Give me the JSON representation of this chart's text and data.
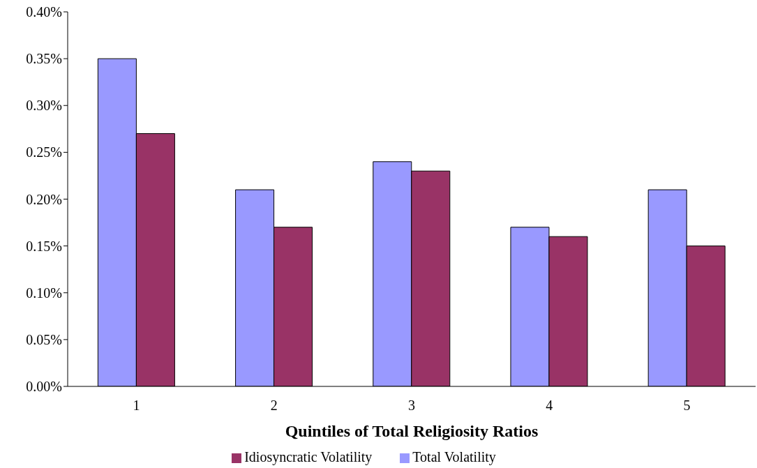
{
  "chart_data": {
    "type": "bar",
    "xlabel": "Quintiles of Total Religiosity Ratios",
    "categories": [
      "1",
      "2",
      "3",
      "4",
      "5"
    ],
    "series": [
      {
        "name": "Total Volatility",
        "color": "#9999ff",
        "values": [
          0.35,
          0.21,
          0.24,
          0.17,
          0.21
        ]
      },
      {
        "name": "Idiosyncratic Volatility",
        "color": "#993366",
        "values": [
          0.27,
          0.17,
          0.23,
          0.16,
          0.15
        ]
      }
    ],
    "ylim": [
      0,
      0.4
    ],
    "yticks": [
      {
        "value": 0,
        "label": "0.00%"
      },
      {
        "value": 0.05,
        "label": "0.05%"
      },
      {
        "value": 0.1,
        "label": "0.10%"
      },
      {
        "value": 0.15,
        "label": "0.15%"
      },
      {
        "value": 0.2,
        "label": "0.20%"
      },
      {
        "value": 0.25,
        "label": "0.25%"
      },
      {
        "value": 0.3,
        "label": "0.30%"
      },
      {
        "value": 0.35,
        "label": "0.35%"
      },
      {
        "value": 0.4,
        "label": "0.40%"
      }
    ],
    "grid": false,
    "legend": "bottom"
  }
}
